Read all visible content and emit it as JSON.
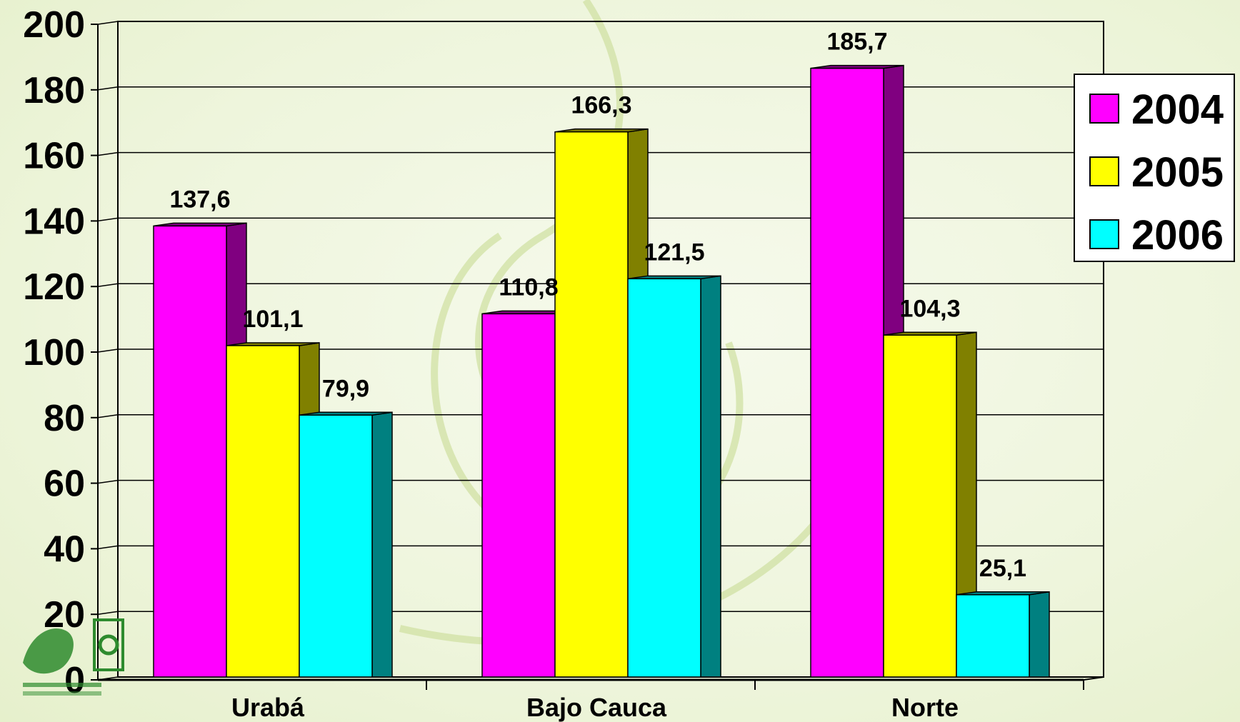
{
  "chart_data": {
    "type": "bar",
    "title": "",
    "xlabel": "",
    "ylabel": "",
    "categories": [
      "Urabá",
      "Bajo Cauca",
      "Norte"
    ],
    "series": [
      {
        "name": "2004",
        "values": [
          137.6,
          110.8,
          185.7
        ],
        "color": "#ff00ff",
        "side_color": "#800080"
      },
      {
        "name": "2005",
        "values": [
          101.1,
          166.3,
          104.3
        ],
        "color": "#ffff00",
        "side_color": "#808000"
      },
      {
        "name": "2006",
        "values": [
          79.9,
          121.5,
          25.1
        ],
        "color": "#00ffff",
        "side_color": "#008080"
      }
    ],
    "data_labels": [
      [
        "137,6",
        "110,8",
        "185,7"
      ],
      [
        "101,1",
        "166,3",
        "104,3"
      ],
      [
        "79,9",
        "121,5",
        "25,1"
      ]
    ],
    "ylim": [
      0,
      200
    ],
    "yticks": [
      "0",
      "20",
      "40",
      "60",
      "80",
      "100",
      "120",
      "140",
      "160",
      "180",
      "200"
    ],
    "grid": true,
    "legend": "right",
    "three_d": true
  }
}
